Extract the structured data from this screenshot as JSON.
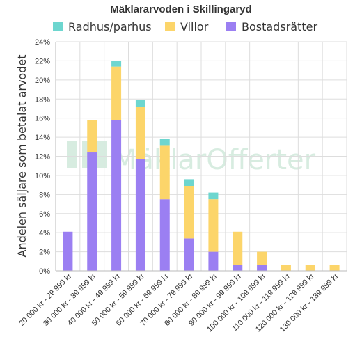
{
  "chart_data": {
    "type": "bar",
    "stacked": true,
    "title": "Mäklararvoden i Skillingaryd",
    "ylabel": "Andelen säljare som betalat arvodet",
    "xlabel": "",
    "ylim": [
      0,
      24
    ],
    "yticks": [
      "0%",
      "2%",
      "4%",
      "6%",
      "8%",
      "10%",
      "12%",
      "14%",
      "16%",
      "18%",
      "20%",
      "22%",
      "24%"
    ],
    "grid": true,
    "legend_position": "top",
    "categories": [
      "20 000 kr - 29 999 kr",
      "30 000 kr - 39 999 kr",
      "40 000 kr - 49 999 kr",
      "50 000 kr - 59 999 kr",
      "60 000 kr - 69 999 kr",
      "70 000 kr - 79 999 kr",
      "80 000 kr - 89 999 kr",
      "90 000 kr - 99 999 kr",
      "100 000 kr - 109 999 kr",
      "110 000 kr - 119 999 kr",
      "120 000 kr - 129 999 kr",
      "130 000 kr - 139 999 kr"
    ],
    "series": [
      {
        "name": "Bostadsrätter",
        "color": "#9b7ff2",
        "values": [
          4.1,
          12.4,
          15.8,
          11.7,
          7.5,
          3.4,
          2.0,
          0.6,
          0.6,
          0,
          0,
          0
        ]
      },
      {
        "name": "Villor",
        "color": "#fcd56a",
        "values": [
          0,
          3.4,
          5.6,
          5.5,
          5.6,
          5.5,
          5.5,
          3.5,
          1.4,
          0.6,
          0.6,
          0.6
        ]
      },
      {
        "name": "Radhus/parhus",
        "color": "#6dd6cf",
        "values": [
          0,
          0,
          0.6,
          0.7,
          0.7,
          0.7,
          0.7,
          0,
          0,
          0,
          0,
          0
        ]
      }
    ],
    "legend_order": [
      "Radhus/parhus",
      "Villor",
      "Bostadsrätter"
    ]
  },
  "watermark": "MäklarOfferter"
}
